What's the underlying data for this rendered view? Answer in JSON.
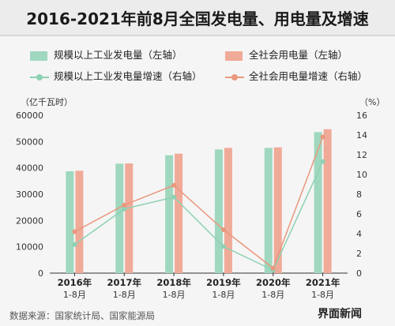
{
  "title": "2016-2021年前8月全国发电量、用电量及增速",
  "legend": [
    {
      "label": "规模以上工业发电量（左轴）",
      "kind": "bar",
      "color": "#9fd8bf"
    },
    {
      "label": "全社会用电量（左轴）",
      "kind": "bar",
      "color": "#f0aa98"
    },
    {
      "label": "规模以上工业发电量增速（右轴）",
      "kind": "line",
      "color": "#8ed1b3"
    },
    {
      "label": "全社会用电量增速（右轴）",
      "kind": "line",
      "color": "#e9987d"
    }
  ],
  "chart_data": {
    "type": "bar",
    "left_axis_unit": "（亿千瓦时）",
    "right_axis_unit": "（%）",
    "categories": [
      {
        "year": "2016年",
        "period": "1-8月"
      },
      {
        "year": "2017年",
        "period": "1-8月"
      },
      {
        "year": "2018年",
        "period": "1-8月"
      },
      {
        "year": "2019年",
        "period": "1-8月"
      },
      {
        "year": "2020年",
        "period": "1-8月"
      },
      {
        "year": "2021年",
        "period": "1-8月"
      }
    ],
    "left_ylim": [
      0,
      60000
    ],
    "left_ticks": [
      "0",
      "10000",
      "20000",
      "30000",
      "40000",
      "50000",
      "60000"
    ],
    "right_ylim": [
      0,
      16
    ],
    "right_ticks": [
      "0",
      "2",
      "4",
      "6",
      "8",
      "10",
      "12",
      "14",
      "16"
    ],
    "series": [
      {
        "name": "规模以上工业发电量（左轴）",
        "kind": "bar",
        "axis": "left",
        "color": "#9fd8bf",
        "values": [
          38700,
          41600,
          44800,
          47000,
          47600,
          53600
        ]
      },
      {
        "name": "全社会用电量（左轴）",
        "kind": "bar",
        "axis": "left",
        "color": "#f0aa98",
        "values": [
          38900,
          41700,
          45400,
          47600,
          47800,
          54700
        ]
      },
      {
        "name": "规模以上工业发电量增速（右轴）",
        "kind": "line",
        "axis": "right",
        "color": "#8ed1b3",
        "values": [
          2.9,
          6.5,
          7.7,
          2.7,
          0.3,
          11.3
        ]
      },
      {
        "name": "全社会用电量增速（右轴）",
        "kind": "line",
        "axis": "right",
        "color": "#e9987d",
        "values": [
          4.2,
          6.9,
          8.9,
          4.4,
          0.5,
          13.8
        ]
      }
    ]
  },
  "source": "数据来源：国家统计局、国家能源局",
  "brand": "界面新闻"
}
